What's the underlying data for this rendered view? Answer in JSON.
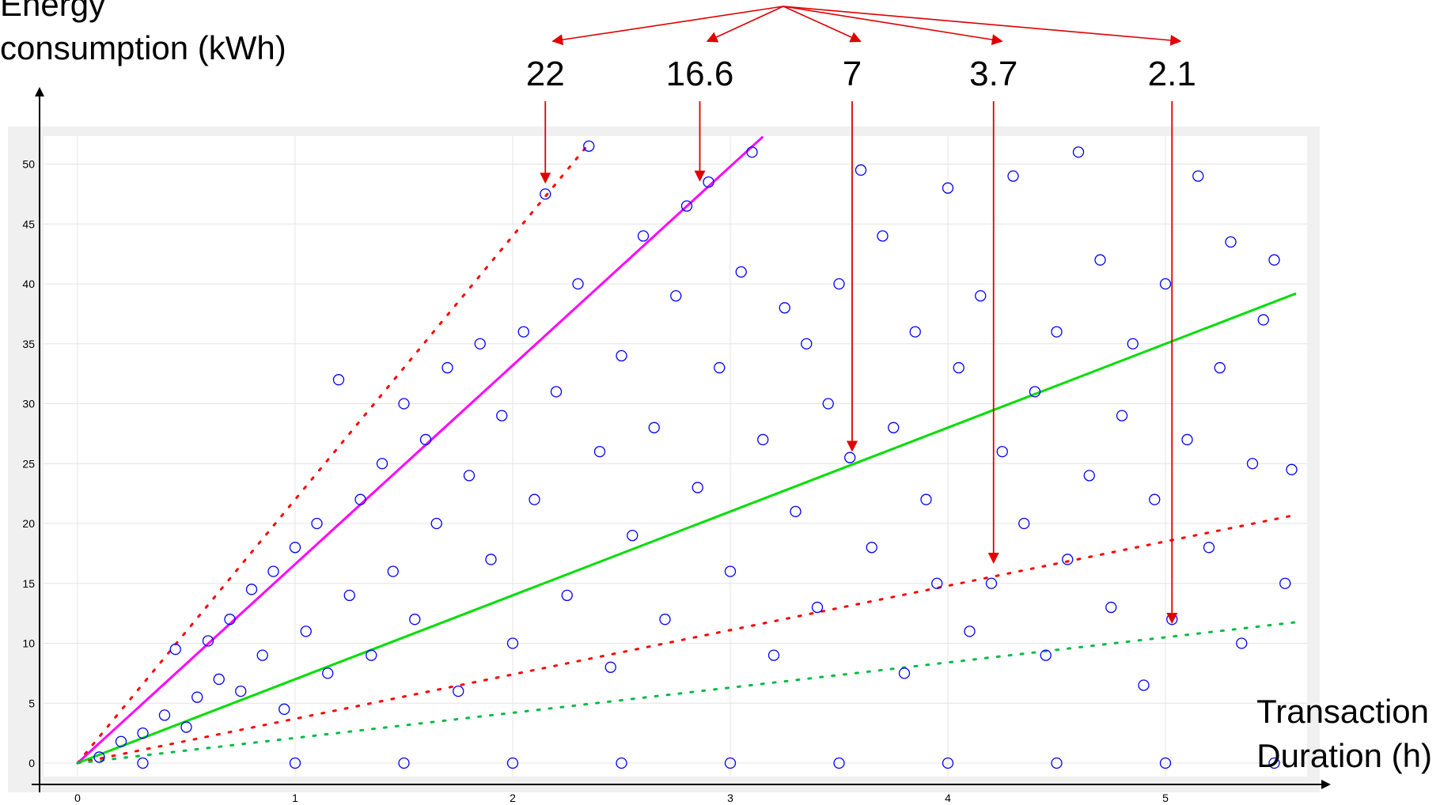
{
  "chart_data": {
    "type": "scatter",
    "title": "",
    "ylabel_line1": "Energy",
    "ylabel_line2": "consumption  (kWh)",
    "xlabel_line1": "Transaction",
    "xlabel_line2": "Duration (h)",
    "xlim": [
      -0.3,
      5.6
    ],
    "ylim": [
      -1.5,
      52.5
    ],
    "xticks": [
      0,
      1,
      2,
      3,
      4,
      5
    ],
    "yticks": [
      0,
      5,
      10,
      15,
      20,
      25,
      30,
      35,
      40,
      45,
      50
    ],
    "grid": true,
    "power_levels": [
      {
        "label": "22",
        "power_kw": 22,
        "color": "#ff0000",
        "style": "dotted",
        "x_end": 2.36,
        "arrow_x": 2.15
      },
      {
        "label": "16.6",
        "power_kw": 16.6,
        "color": "#ff00ff",
        "style": "solid",
        "x_end": 3.15,
        "arrow_x": 2.86
      },
      {
        "label": "7",
        "power_kw": 7,
        "color": "#00dd00",
        "style": "solid",
        "x_end": 5.6,
        "arrow_x": 3.56
      },
      {
        "label": "3.7",
        "power_kw": 3.7,
        "color": "#ff0000",
        "style": "dotted",
        "x_end": 5.6,
        "arrow_x": 4.21
      },
      {
        "label": "2.1",
        "power_kw": 2.1,
        "color": "#00bb44",
        "style": "dotted",
        "x_end": 5.6,
        "arrow_x": 5.03
      }
    ],
    "series": [
      {
        "marker": "circle-open",
        "color": "#0000ff",
        "points": [
          [
            0.1,
            0.5
          ],
          [
            0.2,
            1.8
          ],
          [
            0.3,
            2.5
          ],
          [
            0.4,
            4.0
          ],
          [
            0.45,
            9.5
          ],
          [
            0.5,
            3.0
          ],
          [
            0.55,
            5.5
          ],
          [
            0.6,
            10.2
          ],
          [
            0.65,
            7.0
          ],
          [
            0.7,
            12.0
          ],
          [
            0.75,
            6.0
          ],
          [
            0.8,
            14.5
          ],
          [
            0.85,
            9.0
          ],
          [
            0.9,
            16.0
          ],
          [
            0.95,
            4.5
          ],
          [
            1.0,
            18.0
          ],
          [
            1.05,
            11.0
          ],
          [
            1.1,
            20.0
          ],
          [
            1.15,
            7.5
          ],
          [
            1.2,
            32.0
          ],
          [
            1.25,
            14.0
          ],
          [
            1.3,
            22.0
          ],
          [
            1.35,
            9.0
          ],
          [
            1.4,
            25.0
          ],
          [
            1.45,
            16.0
          ],
          [
            1.5,
            30.0
          ],
          [
            1.55,
            12.0
          ],
          [
            1.6,
            27.0
          ],
          [
            1.65,
            20.0
          ],
          [
            1.7,
            33.0
          ],
          [
            1.75,
            6.0
          ],
          [
            1.8,
            24.0
          ],
          [
            1.85,
            35.0
          ],
          [
            1.9,
            17.0
          ],
          [
            1.95,
            29.0
          ],
          [
            2.0,
            10.0
          ],
          [
            2.05,
            36.0
          ],
          [
            2.1,
            22.0
          ],
          [
            2.15,
            47.5
          ],
          [
            2.2,
            31.0
          ],
          [
            2.25,
            14.0
          ],
          [
            2.3,
            40.0
          ],
          [
            2.35,
            51.5
          ],
          [
            2.4,
            26.0
          ],
          [
            2.45,
            8.0
          ],
          [
            2.5,
            34.0
          ],
          [
            2.55,
            19.0
          ],
          [
            2.6,
            44.0
          ],
          [
            2.65,
            28.0
          ],
          [
            2.7,
            12.0
          ],
          [
            2.75,
            39.0
          ],
          [
            2.8,
            46.5
          ],
          [
            2.85,
            23.0
          ],
          [
            2.9,
            48.5
          ],
          [
            2.95,
            33.0
          ],
          [
            3.0,
            16.0
          ],
          [
            3.05,
            41.0
          ],
          [
            3.1,
            51.0
          ],
          [
            3.15,
            27.0
          ],
          [
            3.2,
            9.0
          ],
          [
            3.25,
            38.0
          ],
          [
            3.3,
            21.0
          ],
          [
            3.35,
            35.0
          ],
          [
            3.4,
            13.0
          ],
          [
            3.45,
            30.0
          ],
          [
            3.5,
            40.0
          ],
          [
            3.55,
            25.5
          ],
          [
            3.6,
            49.5
          ],
          [
            3.65,
            18.0
          ],
          [
            3.7,
            44.0
          ],
          [
            3.75,
            28.0
          ],
          [
            3.8,
            7.5
          ],
          [
            3.85,
            36.0
          ],
          [
            3.9,
            22.0
          ],
          [
            3.95,
            15.0
          ],
          [
            4.0,
            48.0
          ],
          [
            4.05,
            33.0
          ],
          [
            4.1,
            11.0
          ],
          [
            4.15,
            39.0
          ],
          [
            4.2,
            15.0
          ],
          [
            4.25,
            26.0
          ],
          [
            4.3,
            49.0
          ],
          [
            4.35,
            20.0
          ],
          [
            4.4,
            31.0
          ],
          [
            4.45,
            9.0
          ],
          [
            4.5,
            36.0
          ],
          [
            4.55,
            17.0
          ],
          [
            4.6,
            51.0
          ],
          [
            4.65,
            24.0
          ],
          [
            4.7,
            42.0
          ],
          [
            4.75,
            13.0
          ],
          [
            4.8,
            29.0
          ],
          [
            4.85,
            35.0
          ],
          [
            4.9,
            6.5
          ],
          [
            4.95,
            22.0
          ],
          [
            5.0,
            40.0
          ],
          [
            5.03,
            12.0
          ],
          [
            5.1,
            27.0
          ],
          [
            5.15,
            49.0
          ],
          [
            5.2,
            18.0
          ],
          [
            5.25,
            33.0
          ],
          [
            5.3,
            43.5
          ],
          [
            5.35,
            10.0
          ],
          [
            5.4,
            25.0
          ],
          [
            5.45,
            37.0
          ],
          [
            5.5,
            42.0
          ],
          [
            5.55,
            15.0
          ],
          [
            5.58,
            24.5
          ],
          [
            0.3,
            0
          ],
          [
            1.0,
            0
          ],
          [
            1.5,
            0
          ],
          [
            2.0,
            0
          ],
          [
            2.5,
            0
          ],
          [
            3.0,
            0
          ],
          [
            3.5,
            0
          ],
          [
            4.0,
            0
          ],
          [
            4.5,
            0
          ],
          [
            5.0,
            0
          ],
          [
            5.5,
            0
          ]
        ]
      }
    ]
  }
}
